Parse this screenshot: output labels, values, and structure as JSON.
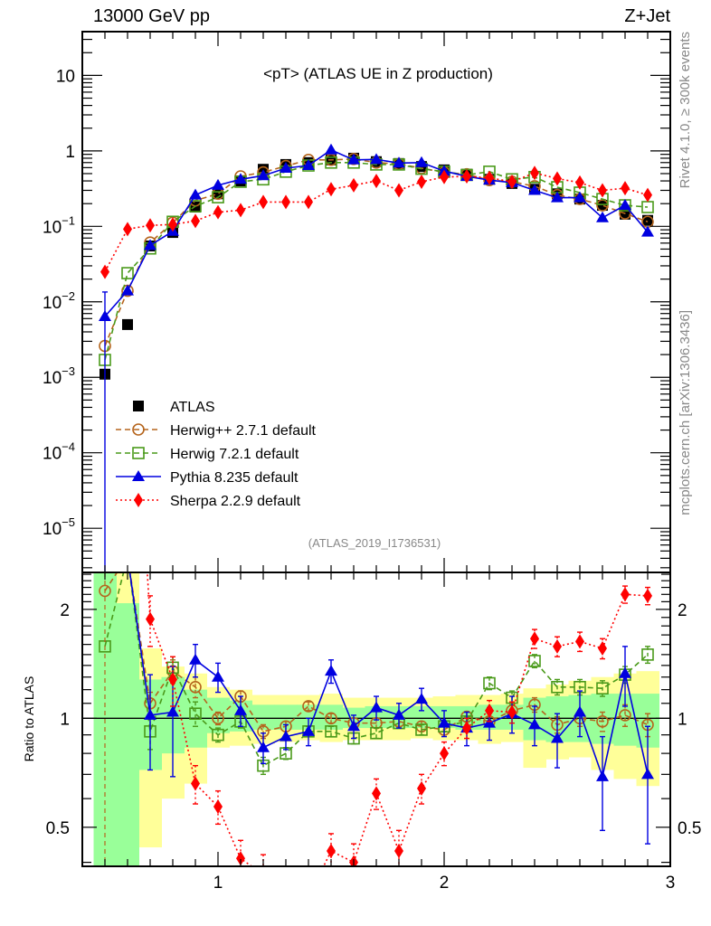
{
  "header": {
    "left": "13000 GeV pp",
    "right": "Z+Jet"
  },
  "side_labels": {
    "rivet": "Rivet 4.1.0, ≥ 300k events",
    "mcplots": "mcplots.cern.ch [arXiv:1306.3436]"
  },
  "chart_data": [
    {
      "type": "line",
      "panel": "main",
      "title": "<pT> (ATLAS UE in Z production)",
      "analysis_id": "(ATLAS_2019_I1736531)",
      "xlabel": "",
      "ylabel": "",
      "xlim": [
        0.4,
        3.0
      ],
      "ylim": [
        2.6e-06,
        38
      ],
      "yscale": "log",
      "x_tick_labels": [],
      "y_tick_labels": [
        "10",
        "1",
        "10^-1",
        "10^-2",
        "10^-3",
        "10^-4",
        "10^-5"
      ],
      "y_tick_values": [
        10,
        1,
        0.1,
        0.01,
        0.001,
        0.0001,
        1e-05
      ],
      "legend_position": "lower-left",
      "x": [
        0.5,
        0.6,
        0.7,
        0.8,
        0.9,
        1.0,
        1.1,
        1.2,
        1.3,
        1.4,
        1.5,
        1.6,
        1.7,
        1.8,
        1.9,
        2.0,
        2.1,
        2.2,
        2.3,
        2.4,
        2.5,
        2.6,
        2.7,
        2.8,
        2.9
      ],
      "series": [
        {
          "name": "ATLAS",
          "color": "#000000",
          "marker": "square-filled",
          "line": "none",
          "values": [
            0.0011,
            0.005,
            0.055,
            0.083,
            0.18,
            0.27,
            0.4,
            0.57,
            0.66,
            0.7,
            0.76,
            0.8,
            0.72,
            0.68,
            0.62,
            0.56,
            0.49,
            0.42,
            0.37,
            0.31,
            0.27,
            0.23,
            0.19,
            0.145,
            0.12
          ]
        },
        {
          "name": "Herwig++ 2.7.1 default",
          "color": "#b5651d",
          "marker": "circle-open",
          "line": "dashed",
          "values": [
            0.0026,
            0.014,
            0.061,
            0.112,
            0.22,
            0.27,
            0.46,
            0.52,
            0.63,
            0.76,
            0.76,
            0.78,
            0.7,
            0.67,
            0.59,
            0.52,
            0.49,
            0.41,
            0.39,
            0.34,
            0.26,
            0.23,
            0.19,
            0.148,
            0.115
          ]
        },
        {
          "name": "Herwig 7.2.1 default",
          "color": "#4a9a1a",
          "marker": "square-open",
          "line": "dashed",
          "values": [
            0.0017,
            0.024,
            0.051,
            0.115,
            0.185,
            0.243,
            0.39,
            0.42,
            0.53,
            0.64,
            0.7,
            0.7,
            0.66,
            0.66,
            0.58,
            0.53,
            0.48,
            0.53,
            0.42,
            0.45,
            0.33,
            0.28,
            0.23,
            0.19,
            0.18
          ]
        },
        {
          "name": "Pythia 8.235 default",
          "color": "#0000e0",
          "marker": "triangle-filled",
          "line": "solid",
          "values": [
            0.0064,
            0.014,
            0.056,
            0.086,
            0.26,
            0.35,
            0.42,
            0.47,
            0.59,
            0.64,
            1.03,
            0.76,
            0.77,
            0.69,
            0.7,
            0.54,
            0.46,
            0.41,
            0.38,
            0.3,
            0.24,
            0.24,
            0.13,
            0.19,
            0.084
          ]
        },
        {
          "name": "Sherpa 2.2.9 default",
          "color": "#ff0000",
          "marker": "diamond-filled",
          "line": "dotted",
          "values": [
            0.025,
            0.092,
            0.103,
            0.106,
            0.118,
            0.154,
            0.164,
            0.21,
            0.21,
            0.21,
            0.31,
            0.35,
            0.4,
            0.3,
            0.39,
            0.45,
            0.46,
            0.44,
            0.39,
            0.51,
            0.43,
            0.38,
            0.3,
            0.32,
            0.26
          ]
        }
      ]
    },
    {
      "type": "line",
      "panel": "ratio",
      "ylabel": "Ratio to ATLAS",
      "xlabel": "",
      "xlim": [
        0.4,
        3.0
      ],
      "ylim": [
        0.39,
        2.53
      ],
      "yscale": "log",
      "x_tick_labels": [
        "1",
        "2",
        "3"
      ],
      "x_tick_values": [
        1,
        2,
        3
      ],
      "y_tick_labels": [
        "2",
        "1",
        "0.5"
      ],
      "y_tick_values": [
        2,
        1,
        0.5
      ],
      "x": [
        0.5,
        0.6,
        0.7,
        0.8,
        0.9,
        1.0,
        1.1,
        1.2,
        1.3,
        1.4,
        1.5,
        1.6,
        1.7,
        1.8,
        1.9,
        2.0,
        2.1,
        2.2,
        2.3,
        2.4,
        2.5,
        2.6,
        2.7,
        2.8,
        2.9
      ],
      "bands": {
        "yellow_2sigma": {
          "color": "#ffff99",
          "lower": [
            0.39,
            0.39,
            0.44,
            0.6,
            0.66,
            0.83,
            0.84,
            0.85,
            0.86,
            0.87,
            0.86,
            0.87,
            0.87,
            0.87,
            0.88,
            0.87,
            0.87,
            0.85,
            0.86,
            0.73,
            0.77,
            0.78,
            0.72,
            0.68,
            0.65
          ],
          "upper": [
            2.53,
            2.53,
            1.56,
            1.39,
            1.33,
            1.22,
            1.2,
            1.16,
            1.16,
            1.16,
            1.17,
            1.14,
            1.14,
            1.14,
            1.14,
            1.15,
            1.16,
            1.16,
            1.17,
            1.21,
            1.24,
            1.27,
            1.3,
            1.33,
            1.35
          ]
        },
        "green_1sigma": {
          "color": "#99ff99",
          "lower": [
            0.39,
            0.39,
            0.72,
            0.8,
            0.83,
            0.91,
            0.92,
            0.93,
            0.93,
            0.93,
            0.93,
            0.94,
            0.94,
            0.94,
            0.94,
            0.94,
            0.93,
            0.93,
            0.93,
            0.87,
            0.86,
            0.86,
            0.85,
            0.84,
            0.83
          ],
          "upper": [
            2.53,
            2.08,
            1.28,
            1.3,
            1.2,
            1.14,
            1.12,
            1.09,
            1.09,
            1.09,
            1.09,
            1.07,
            1.08,
            1.08,
            1.08,
            1.08,
            1.08,
            1.09,
            1.09,
            1.14,
            1.15,
            1.16,
            1.17,
            1.17,
            1.17
          ]
        }
      },
      "series": [
        {
          "name": "Herwig++ 2.7.1 default",
          "color": "#b5651d",
          "marker": "circle-open",
          "line": "dashed",
          "values": [
            2.25,
            2.8,
            1.1,
            1.35,
            1.22,
            1.0,
            1.15,
            0.92,
            0.95,
            1.08,
            1.0,
            0.97,
            0.97,
            0.98,
            0.95,
            0.93,
            1.01,
            0.98,
            1.05,
            1.09,
            0.96,
            1.0,
            0.98,
            1.02,
            0.96
          ],
          "err": [
            0.0,
            0.0,
            0.08,
            0.1,
            0.08,
            0.04,
            0.04,
            0.04,
            0.03,
            0.03,
            0.03,
            0.03,
            0.03,
            0.03,
            0.03,
            0.03,
            0.03,
            0.03,
            0.04,
            0.05,
            0.05,
            0.05,
            0.06,
            0.07,
            0.07
          ]
        },
        {
          "name": "Herwig 7.2.1 default",
          "color": "#4a9a1a",
          "marker": "square-open",
          "line": "dashed",
          "values": [
            1.58,
            2.8,
            0.92,
            1.38,
            1.03,
            0.9,
            0.98,
            0.74,
            0.8,
            0.92,
            0.92,
            0.88,
            0.91,
            0.97,
            0.93,
            0.95,
            0.98,
            1.25,
            1.14,
            1.44,
            1.22,
            1.22,
            1.21,
            1.32,
            1.5
          ],
          "err": [
            0.0,
            0.0,
            0.1,
            0.1,
            0.08,
            0.04,
            0.04,
            0.04,
            0.03,
            0.03,
            0.03,
            0.03,
            0.03,
            0.03,
            0.03,
            0.03,
            0.03,
            0.05,
            0.05,
            0.06,
            0.06,
            0.06,
            0.06,
            0.07,
            0.08
          ]
        },
        {
          "name": "Pythia 8.235 default",
          "color": "#0000e0",
          "marker": "triangle-filled",
          "line": "solid",
          "values": [
            5.8,
            2.8,
            1.02,
            1.04,
            1.45,
            1.3,
            1.05,
            0.83,
            0.89,
            0.92,
            1.35,
            0.95,
            1.07,
            1.02,
            1.13,
            0.97,
            0.94,
            0.97,
            1.03,
            0.96,
            0.88,
            1.04,
            0.69,
            1.33,
            0.7
          ],
          "err": [
            0.0,
            0.0,
            0.3,
            0.35,
            0.15,
            0.12,
            0.1,
            0.08,
            0.07,
            0.08,
            0.1,
            0.07,
            0.08,
            0.08,
            0.08,
            0.08,
            0.1,
            0.1,
            0.12,
            0.12,
            0.15,
            0.15,
            0.2,
            0.25,
            0.25
          ]
        },
        {
          "name": "Sherpa 2.2.9 default",
          "color": "#ff0000",
          "marker": "diamond-filled",
          "line": "dotted",
          "values": [
            23,
            19,
            1.88,
            1.28,
            0.66,
            0.57,
            0.41,
            0.37,
            0.33,
            0.32,
            0.43,
            0.4,
            0.62,
            0.43,
            0.64,
            0.8,
            0.94,
            1.05,
            1.04,
            1.66,
            1.58,
            1.63,
            1.56,
            2.2,
            2.18
          ],
          "err": [
            0.0,
            0.0,
            0.3,
            0.2,
            0.08,
            0.06,
            0.05,
            0.05,
            0.05,
            0.05,
            0.05,
            0.05,
            0.06,
            0.06,
            0.06,
            0.06,
            0.06,
            0.07,
            0.07,
            0.1,
            0.1,
            0.1,
            0.1,
            0.12,
            0.12
          ]
        }
      ]
    }
  ]
}
